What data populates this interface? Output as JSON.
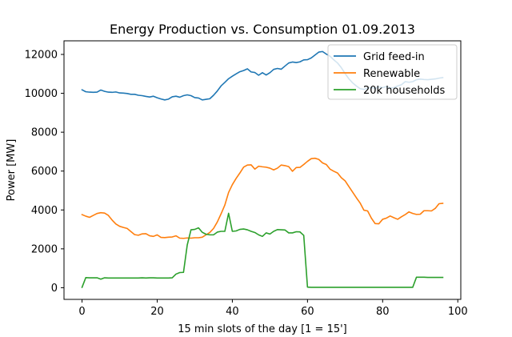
{
  "chart_data": {
    "type": "line",
    "title": "Energy Production vs. Consumption 01.09.2013",
    "xlabel": "15 min slots of the day [1 = 15']",
    "ylabel": "Power [MW]",
    "xlim": [
      -4.8,
      100.8
    ],
    "ylim": [
      -600,
      12700
    ],
    "xticks": [
      0,
      20,
      40,
      60,
      80,
      100
    ],
    "yticks": [
      0,
      2000,
      4000,
      6000,
      8000,
      10000,
      12000
    ],
    "grid": false,
    "legend_position": "top-right",
    "series": [
      {
        "name": "Grid feed-in",
        "color": "#1f77b4",
        "x": [
          0,
          1,
          2,
          3,
          4,
          5,
          6,
          7,
          8,
          9,
          10,
          11,
          12,
          13,
          14,
          15,
          16,
          17,
          18,
          19,
          20,
          21,
          22,
          23,
          24,
          25,
          26,
          27,
          28,
          29,
          30,
          31,
          32,
          33,
          34,
          35,
          36,
          37,
          38,
          39,
          40,
          41,
          42,
          43,
          44,
          45,
          46,
          47,
          48,
          49,
          50,
          51,
          52,
          53,
          54,
          55,
          56,
          57,
          58,
          59,
          60,
          61,
          62,
          63,
          64,
          65,
          66,
          67,
          68,
          69,
          70,
          71,
          72,
          73,
          74,
          75,
          76,
          77,
          78,
          79,
          80,
          81,
          82,
          83,
          84,
          85,
          86,
          87,
          88,
          89,
          90,
          91,
          92,
          93,
          94,
          95,
          96
        ],
        "y": [
          10180,
          10080,
          10060,
          10050,
          10060,
          10170,
          10100,
          10060,
          10050,
          10070,
          10020,
          10010,
          9990,
          9950,
          9950,
          9900,
          9880,
          9840,
          9810,
          9850,
          9770,
          9710,
          9660,
          9700,
          9820,
          9850,
          9800,
          9880,
          9920,
          9880,
          9780,
          9760,
          9660,
          9690,
          9720,
          9900,
          10120,
          10380,
          10560,
          10750,
          10880,
          11000,
          11110,
          11170,
          11260,
          11100,
          11070,
          10930,
          11060,
          10940,
          11060,
          11230,
          11280,
          11240,
          11400,
          11560,
          11610,
          11580,
          11620,
          11720,
          11730,
          11820,
          11970,
          12120,
          12150,
          12020,
          11910,
          11720,
          11560,
          11320,
          11020,
          10750,
          10540,
          10380,
          10240,
          10200,
          10270,
          10300,
          10250,
          10330,
          10290,
          10350,
          10280,
          10290,
          10380,
          10440,
          10600,
          10570,
          10600,
          10700,
          10730,
          10710,
          10700,
          10720,
          10740,
          10780,
          10810
        ]
      },
      {
        "name": "Renewable",
        "color": "#ff7f0e",
        "x": [
          0,
          1,
          2,
          3,
          4,
          5,
          6,
          7,
          8,
          9,
          10,
          11,
          12,
          13,
          14,
          15,
          16,
          17,
          18,
          19,
          20,
          21,
          22,
          23,
          24,
          25,
          26,
          27,
          28,
          29,
          30,
          31,
          32,
          33,
          34,
          35,
          36,
          37,
          38,
          39,
          40,
          41,
          42,
          43,
          44,
          45,
          46,
          47,
          48,
          49,
          50,
          51,
          52,
          53,
          54,
          55,
          56,
          57,
          58,
          59,
          60,
          61,
          62,
          63,
          64,
          65,
          66,
          67,
          68,
          69,
          70,
          71,
          72,
          73,
          74,
          75,
          76,
          77,
          78,
          79,
          80,
          81,
          82,
          83,
          84,
          85,
          86,
          87,
          88,
          89,
          90,
          91,
          92,
          93,
          94,
          95,
          96
        ],
        "y": [
          3760,
          3680,
          3620,
          3720,
          3820,
          3860,
          3840,
          3720,
          3480,
          3280,
          3160,
          3100,
          3050,
          2890,
          2730,
          2700,
          2770,
          2780,
          2670,
          2640,
          2720,
          2590,
          2580,
          2600,
          2610,
          2670,
          2550,
          2540,
          2560,
          2550,
          2570,
          2570,
          2600,
          2720,
          2840,
          3050,
          3380,
          3800,
          4250,
          4900,
          5300,
          5620,
          5900,
          6200,
          6310,
          6320,
          6100,
          6250,
          6220,
          6200,
          6150,
          6060,
          6150,
          6310,
          6280,
          6230,
          5990,
          6180,
          6190,
          6340,
          6500,
          6640,
          6660,
          6600,
          6420,
          6340,
          6100,
          5990,
          5900,
          5660,
          5500,
          5210,
          4920,
          4630,
          4360,
          3990,
          3950,
          3580,
          3300,
          3290,
          3520,
          3580,
          3690,
          3600,
          3520,
          3650,
          3760,
          3900,
          3820,
          3770,
          3780,
          3960,
          3960,
          3950,
          4080,
          4320,
          4340
        ]
      },
      {
        "name": "20k households",
        "color": "#2ca02c",
        "x": [
          0,
          1,
          2,
          3,
          4,
          5,
          6,
          7,
          8,
          9,
          10,
          11,
          12,
          13,
          14,
          15,
          16,
          17,
          18,
          19,
          20,
          21,
          22,
          23,
          24,
          25,
          26,
          27,
          28,
          29,
          30,
          31,
          32,
          33,
          34,
          35,
          36,
          37,
          38,
          39,
          40,
          41,
          42,
          43,
          44,
          45,
          46,
          47,
          48,
          49,
          50,
          51,
          52,
          53,
          54,
          55,
          56,
          57,
          58,
          59,
          60,
          61,
          62,
          63,
          64,
          65,
          66,
          67,
          68,
          69,
          70,
          71,
          72,
          73,
          74,
          75,
          76,
          77,
          78,
          79,
          80,
          81,
          82,
          83,
          84,
          85,
          86,
          87,
          88,
          89,
          90,
          91,
          92,
          93,
          94,
          95,
          96
        ],
        "y": [
          20,
          520,
          510,
          510,
          510,
          440,
          510,
          500,
          500,
          500,
          500,
          500,
          500,
          500,
          500,
          500,
          510,
          500,
          510,
          510,
          500,
          500,
          500,
          500,
          510,
          700,
          780,
          790,
          2200,
          2980,
          3000,
          3080,
          2850,
          2750,
          2720,
          2720,
          2860,
          2900,
          2900,
          3830,
          2900,
          2920,
          3000,
          3020,
          2980,
          2900,
          2840,
          2720,
          2640,
          2820,
          2760,
          2900,
          2990,
          2980,
          2970,
          2820,
          2820,
          2880,
          2870,
          2690,
          30,
          20,
          20,
          20,
          20,
          20,
          20,
          20,
          20,
          20,
          20,
          20,
          20,
          20,
          20,
          20,
          20,
          20,
          20,
          20,
          20,
          20,
          20,
          20,
          20,
          20,
          20,
          20,
          20,
          540,
          540,
          540,
          530,
          530,
          530,
          530,
          530
        ]
      }
    ]
  }
}
